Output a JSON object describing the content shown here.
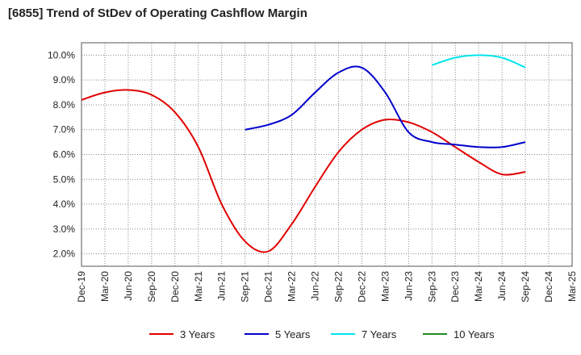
{
  "title": "[6855]  Trend of StDev of Operating Cashflow Margin",
  "chart_data": {
    "type": "line",
    "title": "[6855]  Trend of StDev of Operating Cashflow Margin",
    "xlabel": "",
    "ylabel": "",
    "ylim": [
      1.5,
      10.5
    ],
    "y_ticks": [
      "2.0%",
      "3.0%",
      "4.0%",
      "5.0%",
      "6.0%",
      "7.0%",
      "8.0%",
      "9.0%",
      "10.0%"
    ],
    "y_tick_values": [
      2,
      3,
      4,
      5,
      6,
      7,
      8,
      9,
      10
    ],
    "x_ticks": [
      "Dec-19",
      "Mar-20",
      "Jun-20",
      "Sep-20",
      "Dec-20",
      "Mar-21",
      "Jun-21",
      "Sep-21",
      "Dec-21",
      "Mar-22",
      "Jun-22",
      "Sep-22",
      "Dec-22",
      "Mar-23",
      "Jun-23",
      "Sep-23",
      "Dec-23",
      "Mar-24",
      "Jun-24",
      "Sep-24",
      "Dec-24",
      "Mar-25"
    ],
    "grid": true,
    "legend_position": "bottom",
    "series": [
      {
        "name": "3 Years",
        "color": "#e00000",
        "start_index": 0,
        "values": [
          8.2,
          8.5,
          8.6,
          8.4,
          7.7,
          6.3,
          4.0,
          2.5,
          2.1,
          3.2,
          4.7,
          6.1,
          7.0,
          7.4,
          7.3,
          6.9,
          6.3,
          5.7,
          5.2,
          5.3
        ]
      },
      {
        "name": "5 Years",
        "color": "#0000cc",
        "start_index": 7,
        "values": [
          7.0,
          7.2,
          7.6,
          8.5,
          9.3,
          9.5,
          8.5,
          6.9,
          6.5,
          6.4,
          6.3,
          6.3,
          6.5
        ]
      },
      {
        "name": "7 Years",
        "color": "#00e5ee",
        "start_index": 15,
        "values": [
          9.6,
          9.9,
          10.0,
          9.9,
          9.5
        ]
      },
      {
        "name": "10 Years",
        "color": "#228b22",
        "start_index": 0,
        "values": []
      }
    ]
  }
}
